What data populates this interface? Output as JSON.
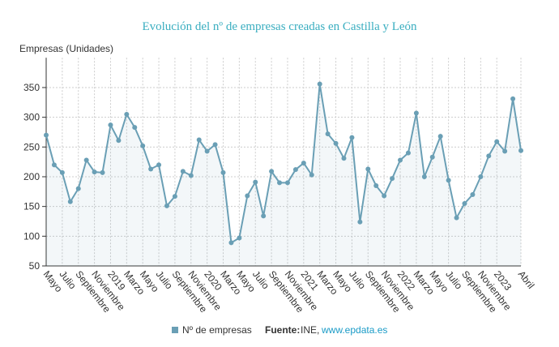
{
  "chart_data": {
    "type": "line",
    "title": "Evolución del nº de empresas creadas en Castilla y León",
    "y_label": "Empresas (Unidades)",
    "categories": [
      "Mayo",
      null,
      "Julio",
      null,
      "Septiembre",
      null,
      "Noviembre",
      null,
      "2019",
      null,
      "Marzo",
      null,
      "Mayo",
      null,
      "Julio",
      null,
      "Septiembre",
      null,
      "Noviembre",
      null,
      "2020",
      null,
      "Marzo",
      null,
      "Mayo",
      null,
      "Julio",
      null,
      "Septiembre",
      null,
      "Noviembre",
      null,
      "2021",
      null,
      "Marzo",
      null,
      "Mayo",
      null,
      "Julio",
      null,
      "Septiembre",
      null,
      "Noviembre",
      null,
      "2022",
      null,
      "Marzo",
      null,
      "Mayo",
      null,
      "Julio",
      null,
      "Septiembre",
      null,
      "Noviembre",
      null,
      "2023",
      null,
      null,
      "Abril"
    ],
    "series": [
      {
        "name": "Nº de empresas",
        "color": "#6a9fb5",
        "values": [
          270,
          220,
          207,
          158,
          180,
          228,
          208,
          207,
          287,
          261,
          305,
          283,
          252,
          213,
          220,
          151,
          167,
          209,
          202,
          262,
          243,
          254,
          207,
          89,
          97,
          168,
          191,
          134,
          209,
          190,
          190,
          212,
          223,
          203,
          356,
          272,
          256,
          231,
          266,
          124,
          213,
          185,
          168,
          197,
          228,
          240,
          307,
          200,
          233,
          268,
          194,
          131,
          155,
          170,
          200,
          235,
          259,
          243,
          331,
          244
        ]
      }
    ],
    "ylim": [
      50,
      400
    ],
    "yticks": [
      50,
      100,
      150,
      200,
      250,
      300,
      350
    ],
    "grid": true,
    "source_label": "Fuente:",
    "source": "INE,",
    "source_url": "www.epdata.es"
  }
}
